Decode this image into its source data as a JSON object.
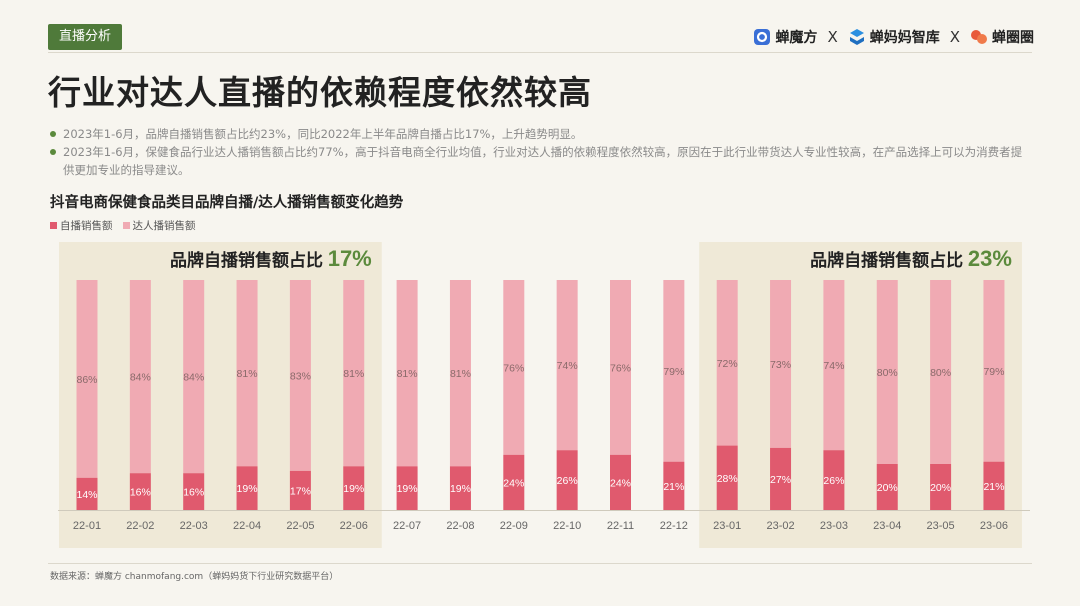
{
  "header": {
    "tag": "直播分析",
    "brands": [
      {
        "name": "蝉魔方",
        "icon": "chanmofang-logo-icon",
        "color": "#3a6fd6"
      },
      {
        "name": "蝉妈妈智库",
        "icon": "chanmama-logo-icon",
        "color": "#2b8fe0"
      },
      {
        "name": "蝉圈圈",
        "icon": "chanquanquan-logo-icon",
        "color": "#e85a3a"
      }
    ],
    "separator": "X"
  },
  "title": "行业对达人直播的依赖程度依然较高",
  "bullets": [
    "2023年1-6月，品牌自播销售额占比约23%，同比2022年上半年品牌自播占比17%，上升趋势明显。",
    "2023年1-6月，保健食品行业达人播销售额占比约77%，高于抖音电商全行业均值，行业对达人播的依赖程度依然较高，原因在于此行业带货达人专业性较高，在产品选择上可以为消费者提供更加专业的指导建议。"
  ],
  "chart_data": {
    "type": "bar",
    "stacked": true,
    "percent": true,
    "title": "抖音电商保健食品类目品牌自播/达人播销售额变化趋势",
    "categories": [
      "22-01",
      "22-02",
      "22-03",
      "22-04",
      "22-05",
      "22-06",
      "22-07",
      "22-08",
      "22-09",
      "22-10",
      "22-11",
      "22-12",
      "23-01",
      "23-02",
      "23-03",
      "23-04",
      "23-05",
      "23-06"
    ],
    "series": [
      {
        "name": "自播销售额",
        "color": "#e05a6e",
        "values": [
          14,
          16,
          16,
          19,
          17,
          19,
          19,
          19,
          24,
          26,
          24,
          21,
          28,
          27,
          26,
          20,
          20,
          21
        ]
      },
      {
        "name": "达人播销售额",
        "color": "#f0aab3",
        "values": [
          86,
          84,
          84,
          81,
          83,
          81,
          81,
          81,
          76,
          74,
          76,
          79,
          72,
          73,
          74,
          80,
          80,
          79
        ]
      }
    ],
    "ylim": [
      0,
      100
    ],
    "highlights": [
      {
        "label": "品牌自播销售额占比",
        "value": "17%",
        "range": [
          "22-01",
          "22-06"
        ]
      },
      {
        "label": "品牌自播销售额占比",
        "value": "23%",
        "range": [
          "23-01",
          "23-06"
        ]
      }
    ],
    "highlight_bg": "#efe9d7",
    "highlight_value_color": "#5b8a3c"
  },
  "source": "数据来源：蝉魔方 chanmofang.com（蝉妈妈货下行业研究数据平台）"
}
